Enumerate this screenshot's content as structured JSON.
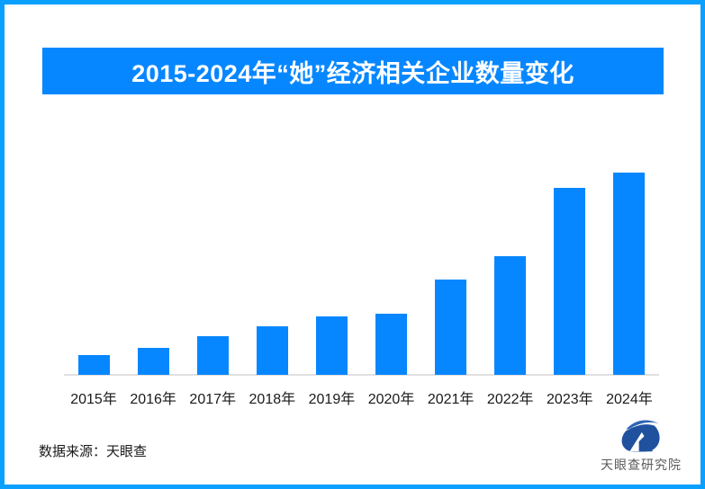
{
  "frame": {
    "border_color": "#0AA0FF",
    "background_color": "#FFFFFF"
  },
  "title": {
    "text": "2015-2024年“她”经济相关企业数量变化",
    "bg_color": "#0787FF",
    "text_color": "#FFFFFF"
  },
  "chart_data": {
    "type": "bar",
    "title": "2015-2024年“她”经济相关企业数量变化",
    "categories": [
      "2015年",
      "2016年",
      "2017年",
      "2018年",
      "2019年",
      "2020年",
      "2021年",
      "2022年",
      "2023年",
      "2024年"
    ],
    "values": [
      22,
      30,
      43,
      54,
      65,
      68,
      106,
      132,
      208,
      225
    ],
    "values_unit": "relative-bar-height-px (no y-axis values shown in chart)",
    "xlabel": "",
    "ylabel": "",
    "ylim": [
      0,
      240
    ],
    "grid": false,
    "legend": "none",
    "bar_color": "#0787FF",
    "axis_line_color": "#E0E0E0",
    "x_tick_color": "#1A1A1A"
  },
  "footer": {
    "source_label": "数据来源：天眼查",
    "logo": {
      "name": "天眼查研究院",
      "mark_body_color": "#20519F",
      "mark_swoosh_color": "#2E64B5",
      "text_color": "#5A5A5A"
    }
  }
}
